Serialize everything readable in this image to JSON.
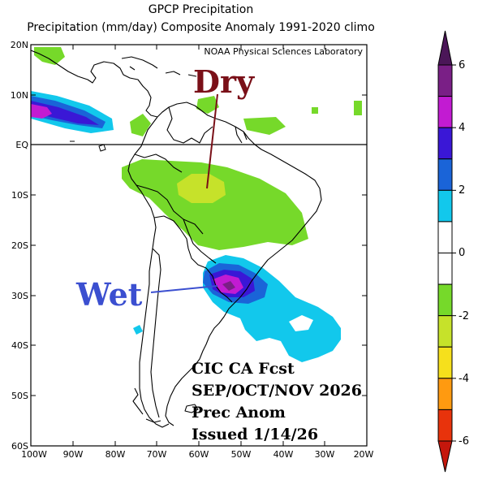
{
  "title": "GPCP Precipitation",
  "subtitle": "Precipitation (mm/day) Composite Anomaly 1991-2020 climo",
  "credit": "NOAA Physical Sciences Laboratory",
  "annotations": {
    "dry": "Dry",
    "wet": "Wet",
    "forecast_lines": [
      "CIC CA Fcst",
      "SEP/OCT/NOV 2026",
      "Prec Anom",
      "Issued 1/14/26"
    ]
  },
  "axes": {
    "lat_labels": [
      "20N",
      "10N",
      "EQ",
      "10S",
      "20S",
      "30S",
      "40S",
      "50S",
      "60S"
    ],
    "lon_labels": [
      "100W",
      "90W",
      "80W",
      "70W",
      "60W",
      "50W",
      "40W",
      "30W",
      "20W"
    ]
  },
  "colorbar": {
    "tick_labels": [
      "6",
      "4",
      "2",
      "0",
      "-2",
      "-4",
      "-6"
    ],
    "colors": [
      "#7a1f86",
      "#c21bd2",
      "#3a17d6",
      "#1a64d8",
      "#12c8ec",
      "#ffffff",
      "#ffffff",
      "#76d92a",
      "#c6e22a",
      "#f6e01c",
      "#ff9a10",
      "#e8330c"
    ],
    "top_cap": "#4b1658",
    "bottom_cap": "#c5170c"
  },
  "colors": {
    "dry_text": "#7a1018",
    "wet_text": "#3b4fd0",
    "light_green": "#76d92a",
    "yellow_green": "#c6e22a",
    "cyan": "#12c8ec",
    "blue": "#1a64d8",
    "indigo": "#3a17d6",
    "magenta": "#c21bd2",
    "purple": "#7a1f86"
  }
}
